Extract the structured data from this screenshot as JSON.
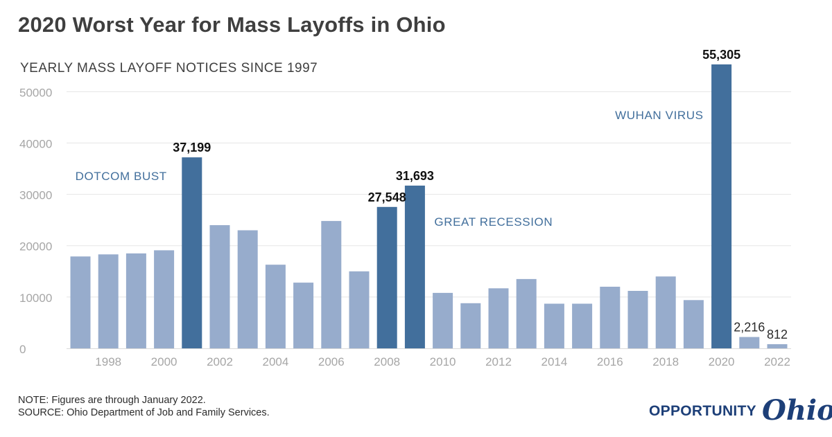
{
  "title": "2020 Worst Year for Mass Layoffs in Ohio",
  "subtitle": "YEARLY MASS LAYOFF NOTICES SINCE 1997",
  "notes": {
    "note": "NOTE: Figures are through January 2022.",
    "source": "SOURCE: Ohio Department of Job and Family Services."
  },
  "logo": {
    "word": "OPPORTUNITY",
    "script": "Ohio"
  },
  "colors": {
    "normal": "#97accc",
    "highlight": "#426f9c",
    "axis_text": "#a6a6a6",
    "grid": "#e5e5e5",
    "annotation": "#426f9c"
  },
  "chart_data": {
    "type": "bar",
    "x": [
      1997,
      1998,
      1999,
      2000,
      2001,
      2002,
      2003,
      2004,
      2005,
      2006,
      2007,
      2008,
      2009,
      2010,
      2011,
      2012,
      2013,
      2014,
      2015,
      2016,
      2017,
      2018,
      2019,
      2020,
      2021,
      2022
    ],
    "values": [
      17900,
      18300,
      18500,
      19100,
      37199,
      24000,
      23000,
      16300,
      12800,
      24800,
      15000,
      27548,
      31693,
      10800,
      8800,
      11700,
      13500,
      8700,
      8700,
      12000,
      11200,
      14000,
      9400,
      55305,
      2216,
      812
    ],
    "highlight_years": [
      2001,
      2008,
      2009,
      2020
    ],
    "data_labels": [
      {
        "year": 2001,
        "text": "37,199",
        "bold": true
      },
      {
        "year": 2008,
        "text": "27,548",
        "bold": true
      },
      {
        "year": 2009,
        "text": "31,693",
        "bold": true
      },
      {
        "year": 2020,
        "text": "55,305",
        "bold": true
      },
      {
        "year": 2021,
        "text": "2,216",
        "bold": false
      },
      {
        "year": 2022,
        "text": "812",
        "bold": false
      }
    ],
    "x_tick_labels": [
      "1998",
      "2000",
      "2002",
      "2004",
      "2006",
      "2008",
      "2010",
      "2012",
      "2014",
      "2016",
      "2018",
      "2020",
      "2022"
    ],
    "y_ticks": [
      0,
      10000,
      20000,
      30000,
      40000,
      50000
    ],
    "y_tick_labels": [
      "0",
      "10000",
      "20000",
      "30000",
      "40000",
      "50000"
    ],
    "ylim": [
      0,
      55305
    ],
    "grid": true,
    "annotations": [
      {
        "text": "DOTCOM BUST",
        "anchor_year": 2001,
        "side": "left"
      },
      {
        "text": "GREAT RECESSION",
        "anchor_year": 2009,
        "side": "right"
      },
      {
        "text": "WUHAN VIRUS",
        "anchor_year": 2020,
        "side": "left"
      }
    ]
  }
}
